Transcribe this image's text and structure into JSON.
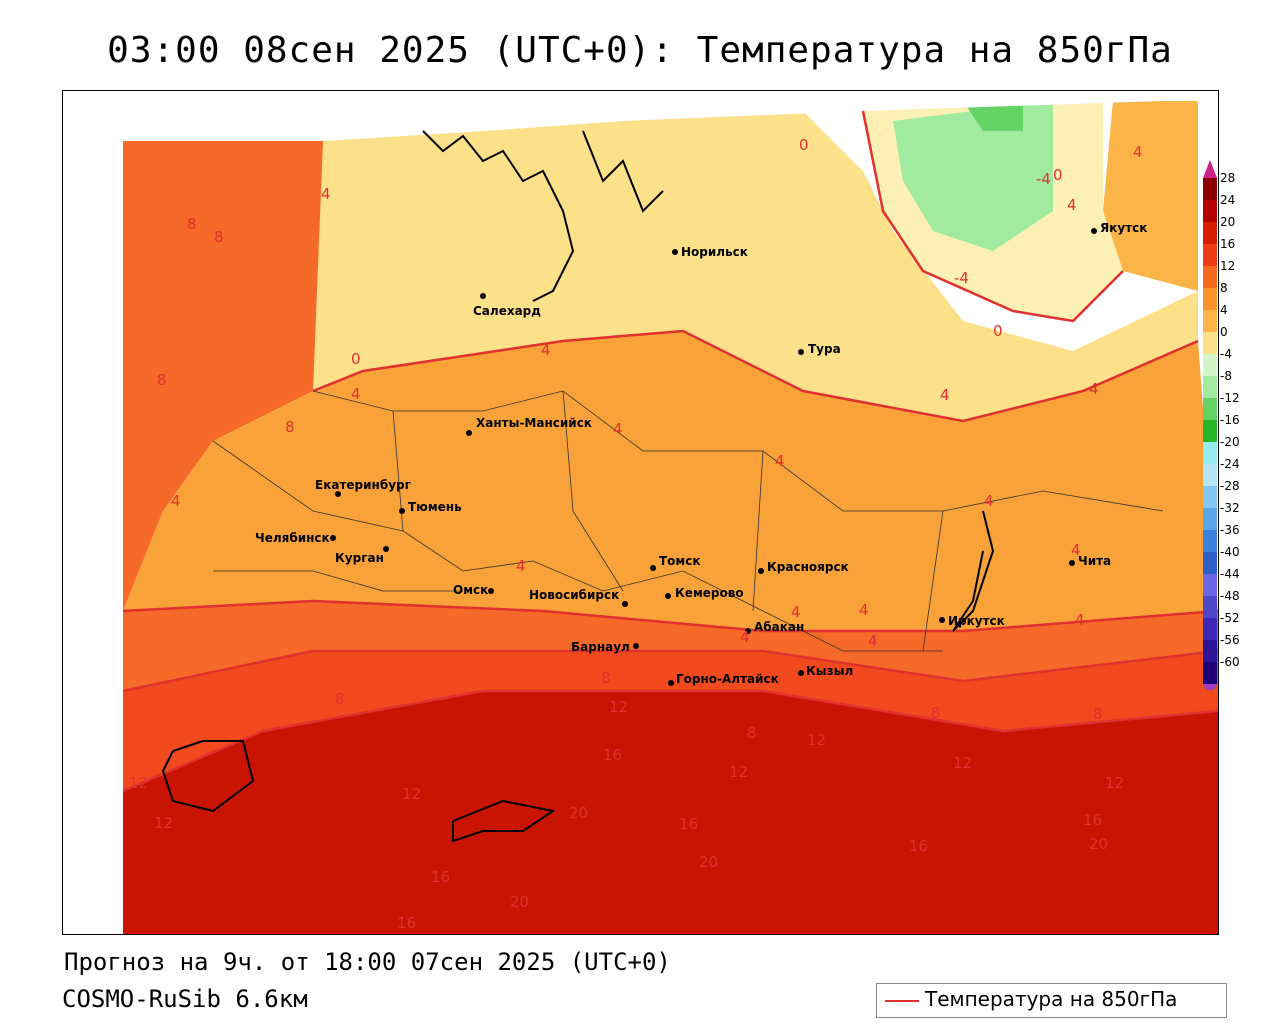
{
  "title": "03:00 08сен 2025 (UTC+0): Температура на 850гПа",
  "footer": {
    "forecast": "Прогноз на 9ч. от 18:00 07сен 2025 (UTC+0)",
    "model": "COSMO-RuSib 6.6км"
  },
  "legend": {
    "label": "Температура на 850гПа",
    "line_color": "#e03030"
  },
  "scale": {
    "labels": [
      "28",
      "24",
      "20",
      "16",
      "12",
      "8",
      "4",
      "0",
      "-4",
      "-8",
      "-12",
      "-16",
      "-20",
      "-24",
      "-28",
      "-32",
      "-36",
      "-40",
      "-44",
      "-48",
      "-52",
      "-56",
      "-60"
    ],
    "colors": [
      "#8b0000",
      "#b40000",
      "#d81e00",
      "#f03c14",
      "#f56a1e",
      "#f8922a",
      "#fbb448",
      "#fde08a",
      "#d2f5c8",
      "#a0eba0",
      "#64d264",
      "#28b428",
      "#96ebf0",
      "#b4e6f5",
      "#82c8f0",
      "#5aa5e6",
      "#3c82dc",
      "#2d5fc8",
      "#6e64e6",
      "#5046c8",
      "#3c28b4",
      "#2d1496",
      "#1e0078"
    ]
  },
  "cities": [
    {
      "name": "Норильск"
    },
    {
      "name": "Якутск"
    },
    {
      "name": "Салехард"
    },
    {
      "name": "Тура"
    },
    {
      "name": "Ханты-Мансийск"
    },
    {
      "name": "Екатеринбург"
    },
    {
      "name": "Тюмень"
    },
    {
      "name": "Челябинск"
    },
    {
      "name": "Курган"
    },
    {
      "name": "Омск"
    },
    {
      "name": "Новосибирск"
    },
    {
      "name": "Томск"
    },
    {
      "name": "Красноярск"
    },
    {
      "name": "Кемерово"
    },
    {
      "name": "Абакан"
    },
    {
      "name": "Иркутск"
    },
    {
      "name": "Чита"
    },
    {
      "name": "Барнаул"
    },
    {
      "name": "Горно-Алтайск"
    },
    {
      "name": "Кызыл"
    }
  ],
  "contour_labels": [
    "4",
    "0",
    "4",
    "4",
    "8",
    "8",
    "0",
    "4",
    "4",
    "8",
    "8",
    "4",
    "4",
    "4",
    "4",
    "4",
    "4",
    "4",
    "4",
    "4",
    "4",
    "4",
    "4",
    "4",
    "8",
    "8",
    "8",
    "12",
    "12",
    "12",
    "16",
    "12",
    "12",
    "12",
    "8",
    "8",
    "12",
    "12",
    "16",
    "20",
    "16",
    "16",
    "20",
    "16",
    "20",
    "20",
    "16",
    "0",
    "-4",
    "-4",
    "0"
  ]
}
